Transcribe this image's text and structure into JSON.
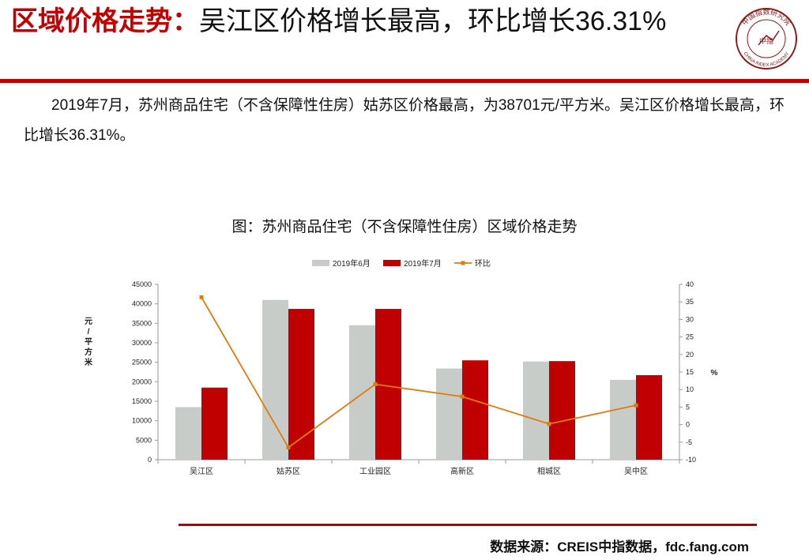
{
  "header": {
    "title_keyword": "区域价格走势：",
    "title_rest": "吴江区价格增长最高，环比增长36.31%"
  },
  "logo": {
    "arc_text": "中国指数研究院",
    "center_text": "中指",
    "bottom_text": "CHINA INDEX ACADEMY",
    "color": "#8b1a1a"
  },
  "body": {
    "paragraph": "2019年7月，苏州商品住宅（不含保障性住房）姑苏区价格最高，为38701元/平方米。吴江区价格增长最高，环比增长36.31%。"
  },
  "chart_title": "图：苏州商品住宅（不含保障性住房）区域价格走势",
  "chart_data": {
    "type": "bar",
    "categories": [
      "吴江区",
      "姑苏区",
      "工业园区",
      "高新区",
      "相城区",
      "吴中区"
    ],
    "series": [
      {
        "name": "2019年6月",
        "kind": "bar",
        "axis": "left",
        "color": "#c8ccc9",
        "values": [
          13500,
          41000,
          34500,
          23400,
          25200,
          20500
        ]
      },
      {
        "name": "2019年7月",
        "kind": "bar",
        "axis": "left",
        "color": "#c00000",
        "values": [
          18500,
          38701,
          38700,
          25500,
          25300,
          21700
        ]
      },
      {
        "name": "环比",
        "kind": "line",
        "axis": "right",
        "color": "#e07a10",
        "values": [
          36.31,
          -6.5,
          11.5,
          8.0,
          0.2,
          5.5
        ]
      }
    ],
    "ylabel": "元/平方米",
    "ylabel_right": "%",
    "ylim": [
      0,
      45000
    ],
    "ylim_right": [
      -10,
      40
    ],
    "y_ticks": [
      0,
      5000,
      10000,
      15000,
      20000,
      25000,
      30000,
      35000,
      40000,
      45000
    ],
    "y_ticks_right": [
      -10,
      -5,
      0,
      5,
      10,
      15,
      20,
      25,
      30,
      35,
      40
    ],
    "grid": false,
    "legend_position": "top"
  },
  "footer": {
    "source": "数据来源：CREIS中指数据，fdc.fang.com"
  }
}
